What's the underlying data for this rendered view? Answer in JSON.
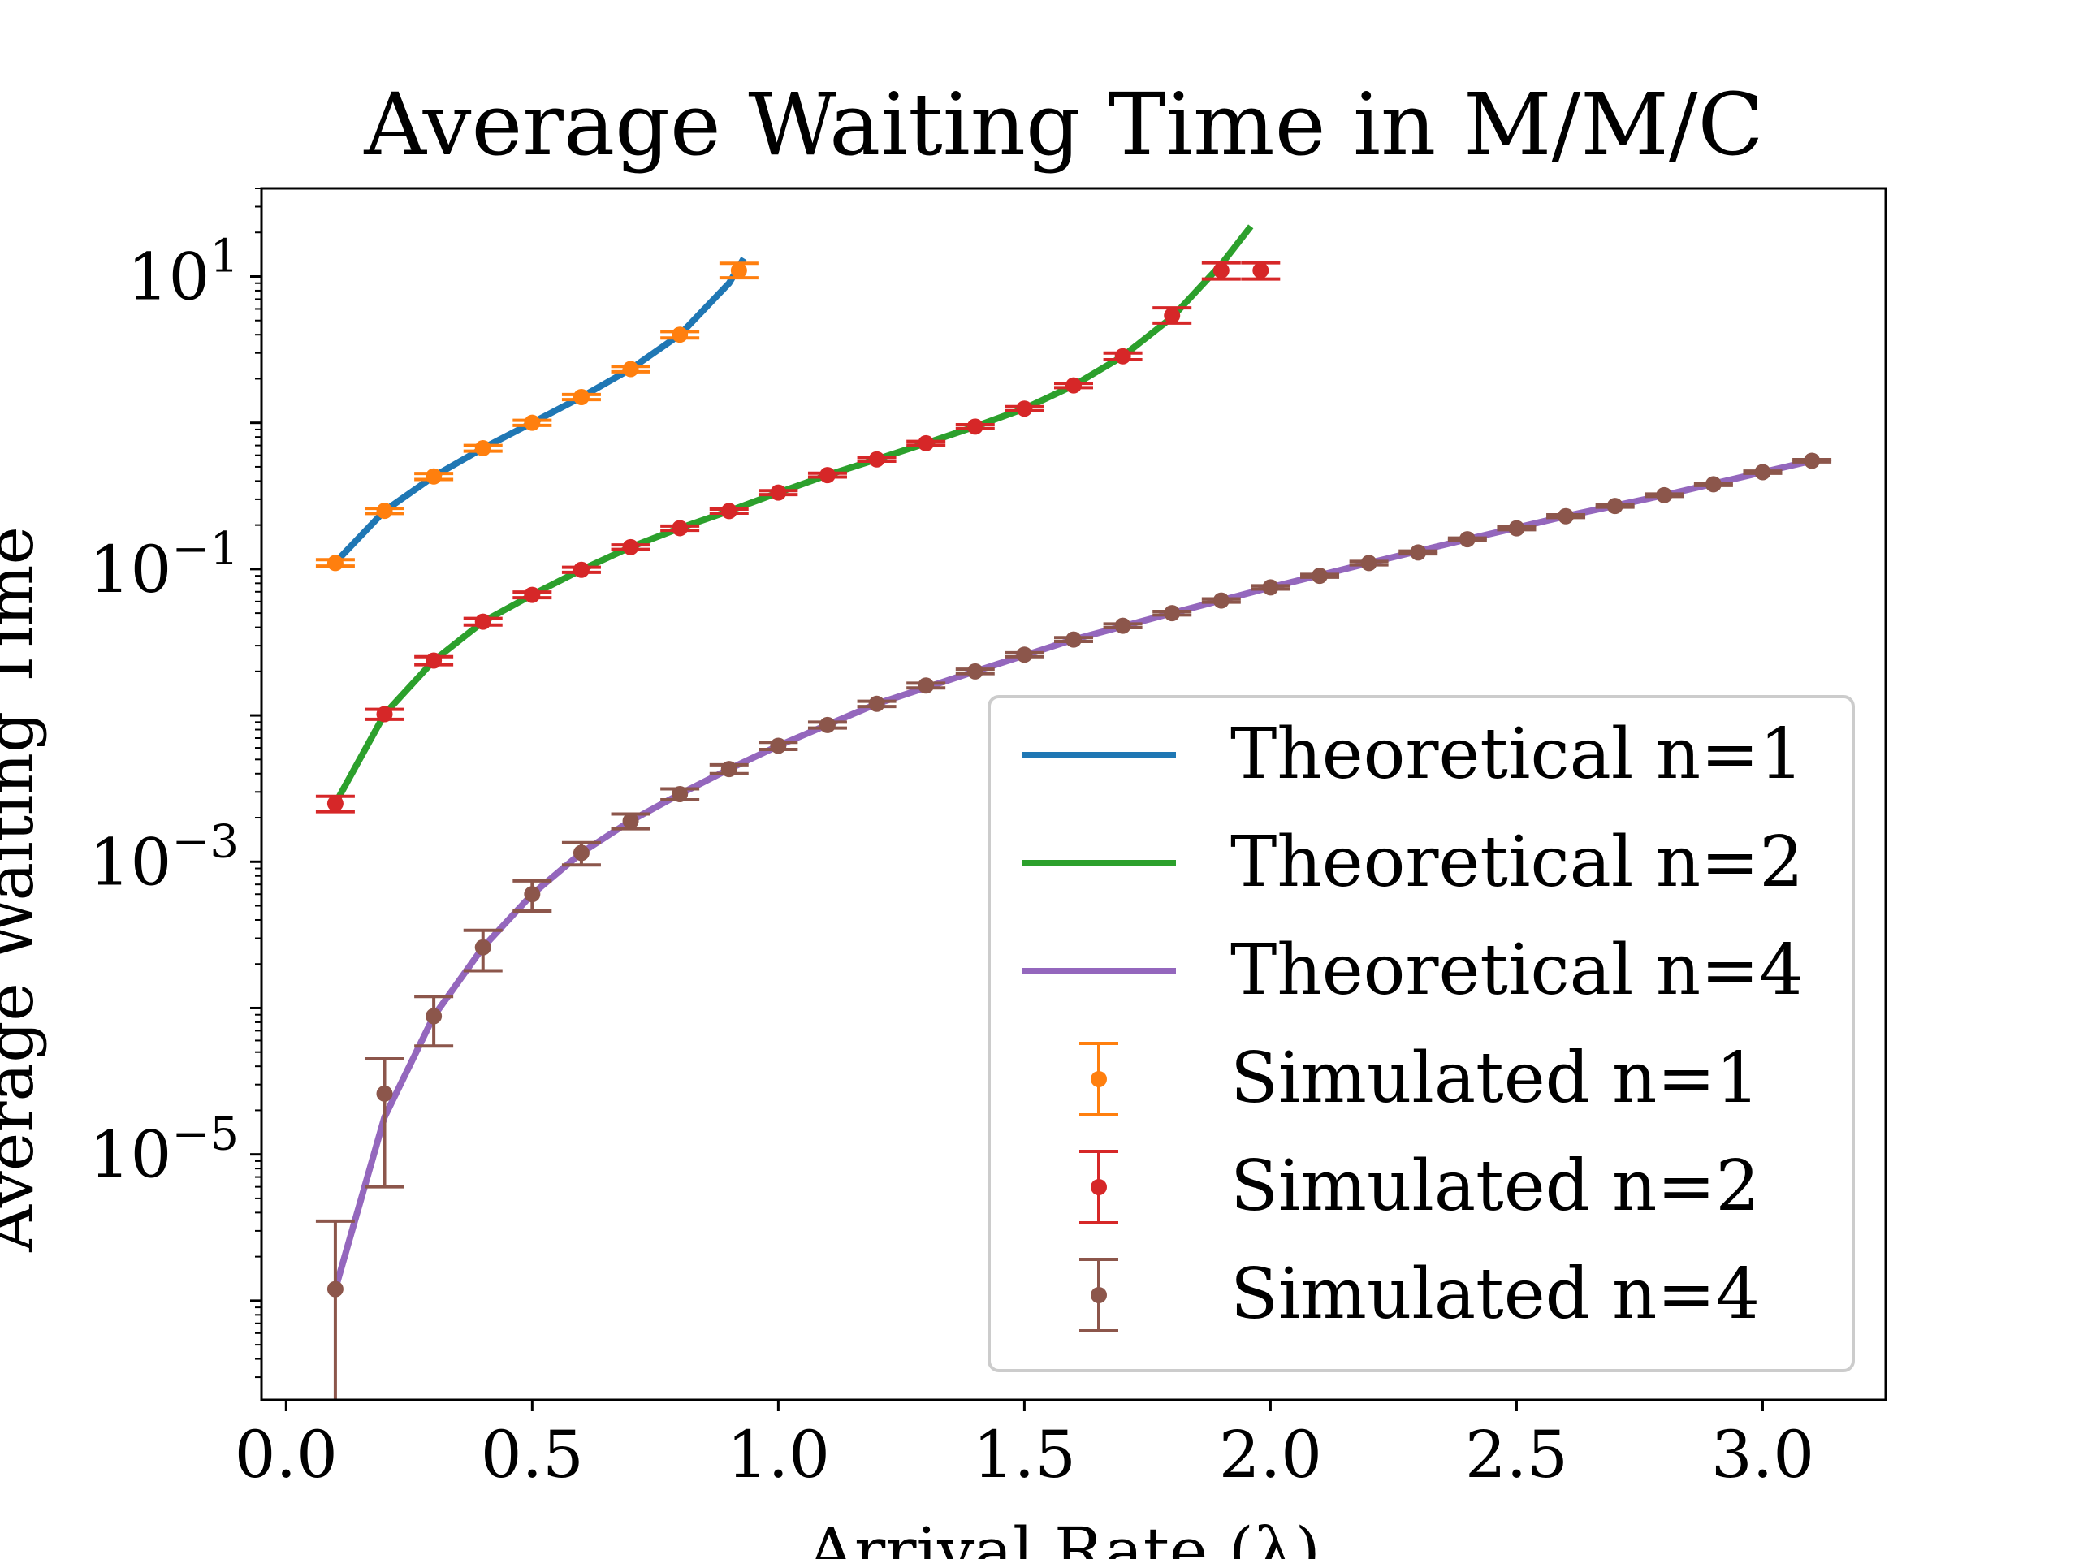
{
  "chart_data": {
    "type": "line",
    "title": "Average Waiting Time in M/M/C",
    "xlabel": "Arrival Rate (λ)",
    "ylabel": "Average Waiting Time",
    "xlim": [
      -0.05,
      3.25
    ],
    "ylim": [
      2.1e-07,
      40
    ],
    "yscale": "log",
    "grid": false,
    "legend_position": "lower-right",
    "xticks": [
      {
        "value": 0.0,
        "label": "0.0"
      },
      {
        "value": 0.5,
        "label": "0.5"
      },
      {
        "value": 1.0,
        "label": "1.0"
      },
      {
        "value": 1.5,
        "label": "1.5"
      },
      {
        "value": 2.0,
        "label": "2.0"
      },
      {
        "value": 2.5,
        "label": "2.5"
      },
      {
        "value": 3.0,
        "label": "3.0"
      }
    ],
    "yticks": [
      {
        "value": 10,
        "base": "10",
        "exp": "1"
      },
      {
        "value": 0.1,
        "base": "10",
        "exp": "−1"
      },
      {
        "value": 0.001,
        "base": "10",
        "exp": "−3"
      },
      {
        "value": 1e-05,
        "base": "10",
        "exp": "−5"
      }
    ],
    "theoretical": [
      {
        "name": "Theoretical n=1",
        "color": "#1f77b4",
        "x": [
          0.1,
          0.2,
          0.3,
          0.4,
          0.5,
          0.6,
          0.7,
          0.8,
          0.9,
          0.93
        ],
        "y": [
          0.111,
          0.25,
          0.43,
          0.67,
          1.0,
          1.5,
          2.33,
          4.0,
          9.0,
          13.3
        ]
      },
      {
        "name": "Theoretical n=2",
        "color": "#2ca02c",
        "x": [
          0.1,
          0.2,
          0.3,
          0.4,
          0.5,
          0.6,
          0.7,
          0.8,
          0.9,
          1.0,
          1.1,
          1.2,
          1.3,
          1.4,
          1.5,
          1.6,
          1.7,
          1.8,
          1.9,
          1.96
        ],
        "y": [
          0.0025,
          0.0102,
          0.0237,
          0.0437,
          0.0667,
          0.0989,
          0.1413,
          0.1905,
          0.2492,
          0.3333,
          0.4388,
          0.5625,
          0.7244,
          0.9423,
          1.25,
          1.8,
          2.85,
          5.26,
          12.1,
          22.0
        ]
      },
      {
        "name": "Theoretical n=4",
        "color": "#9467bd",
        "x": [
          0.1,
          0.2,
          0.3,
          0.4,
          0.5,
          0.6,
          0.7,
          0.8,
          0.9,
          1.0,
          1.2,
          1.4,
          1.6,
          1.8,
          2.0,
          2.2,
          2.4,
          2.6,
          2.8,
          3.0,
          3.1
        ],
        "y": [
          1.2e-06,
          1.8e-05,
          8.8e-05,
          0.00026,
          0.0006,
          0.00115,
          0.0019,
          0.0029,
          0.0043,
          0.0062,
          0.012,
          0.02,
          0.033,
          0.05,
          0.075,
          0.11,
          0.16,
          0.23,
          0.32,
          0.46,
          0.55
        ]
      }
    ],
    "simulated": [
      {
        "name": "Simulated n=1",
        "color": "#ff7f0e",
        "x": [
          0.1,
          0.2,
          0.3,
          0.4,
          0.5,
          0.6,
          0.7,
          0.8,
          0.92
        ],
        "y": [
          0.11,
          0.25,
          0.43,
          0.67,
          1.0,
          1.5,
          2.33,
          4.0,
          11.0
        ],
        "err_low": [
          0.105,
          0.24,
          0.41,
          0.64,
          0.96,
          1.44,
          2.23,
          3.8,
          9.8
        ],
        "err_high": [
          0.116,
          0.26,
          0.45,
          0.7,
          1.04,
          1.56,
          2.43,
          4.2,
          12.3
        ]
      },
      {
        "name": "Simulated n=2",
        "color": "#d62728",
        "x": [
          0.1,
          0.2,
          0.3,
          0.4,
          0.5,
          0.6,
          0.7,
          0.8,
          0.9,
          1.0,
          1.1,
          1.2,
          1.3,
          1.4,
          1.5,
          1.6,
          1.7,
          1.8,
          1.9,
          1.98
        ],
        "y": [
          0.0025,
          0.0102,
          0.0237,
          0.0437,
          0.0667,
          0.0989,
          0.1413,
          0.1905,
          0.2492,
          0.3333,
          0.4388,
          0.5625,
          0.7244,
          0.9423,
          1.25,
          1.8,
          2.85,
          5.4,
          11.0,
          11.0
        ],
        "err_low": [
          0.0022,
          0.0094,
          0.0222,
          0.0415,
          0.0637,
          0.095,
          0.1363,
          0.184,
          0.2413,
          0.323,
          0.4255,
          0.546,
          0.703,
          0.914,
          1.21,
          1.74,
          2.7,
          4.8,
          9.6,
          9.6
        ],
        "err_high": [
          0.0028,
          0.011,
          0.0252,
          0.046,
          0.0697,
          0.1029,
          0.1463,
          0.197,
          0.2572,
          0.3436,
          0.4521,
          0.579,
          0.7458,
          0.9706,
          1.29,
          1.86,
          3.0,
          6.1,
          12.4,
          12.4
        ]
      },
      {
        "name": "Simulated n=4",
        "color": "#8c564b",
        "x": [
          0.1,
          0.2,
          0.3,
          0.4,
          0.5,
          0.6,
          0.7,
          0.8,
          0.9,
          1.0,
          1.1,
          1.2,
          1.3,
          1.4,
          1.5,
          1.6,
          1.7,
          1.8,
          1.9,
          2.0,
          2.1,
          2.2,
          2.3,
          2.4,
          2.5,
          2.6,
          2.7,
          2.8,
          2.9,
          3.0,
          3.1
        ],
        "y": [
          1.2e-06,
          2.6e-05,
          8.8e-05,
          0.00026,
          0.0006,
          0.00115,
          0.0019,
          0.0029,
          0.0043,
          0.0062,
          0.0086,
          0.012,
          0.016,
          0.02,
          0.026,
          0.033,
          0.041,
          0.05,
          0.061,
          0.075,
          0.09,
          0.11,
          0.13,
          0.16,
          0.19,
          0.23,
          0.27,
          0.32,
          0.38,
          0.46,
          0.55
        ],
        "err_low": [
          2.1e-07,
          6e-06,
          5.5e-05,
          0.00018,
          0.00046,
          0.00095,
          0.00168,
          0.00265,
          0.004,
          0.00585,
          0.0082,
          0.0115,
          0.0154,
          0.0193,
          0.0252,
          0.032,
          0.0398,
          0.0486,
          0.0594,
          0.073,
          0.088,
          0.107,
          0.127,
          0.157,
          0.186,
          0.225,
          0.265,
          0.314,
          0.373,
          0.452,
          0.54
        ],
        "err_high": [
          3.5e-06,
          4.5e-05,
          0.00012,
          0.00034,
          0.00074,
          0.00135,
          0.00212,
          0.00315,
          0.0046,
          0.00655,
          0.009,
          0.0125,
          0.0166,
          0.0207,
          0.0268,
          0.034,
          0.0422,
          0.0514,
          0.0626,
          0.077,
          0.092,
          0.113,
          0.133,
          0.163,
          0.194,
          0.235,
          0.275,
          0.326,
          0.387,
          0.468,
          0.56
        ]
      }
    ],
    "legend": [
      {
        "label": "Theoretical n=1",
        "kind": "line",
        "color": "#1f77b4"
      },
      {
        "label": "Theoretical n=2",
        "kind": "line",
        "color": "#2ca02c"
      },
      {
        "label": "Theoretical n=4",
        "kind": "line",
        "color": "#9467bd"
      },
      {
        "label": "Simulated n=1",
        "kind": "errorbar",
        "color": "#ff7f0e"
      },
      {
        "label": "Simulated n=2",
        "kind": "errorbar",
        "color": "#d62728"
      },
      {
        "label": "Simulated n=4",
        "kind": "errorbar",
        "color": "#8c564b"
      }
    ]
  }
}
